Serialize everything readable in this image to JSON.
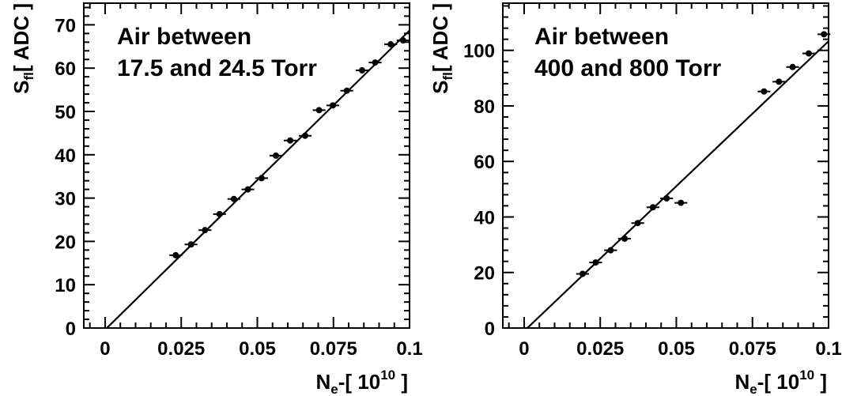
{
  "chart_data": [
    {
      "type": "scatter",
      "annotation": [
        "Air between",
        "17.5 and 24.5 Torr"
      ],
      "xlabel": "N",
      "xlabel_sub": "e",
      "xlabel_suffix": "-[ 10",
      "xlabel_exp": "10",
      "xlabel_close": " ]",
      "ylabel": "S",
      "ylabel_sub": "fl",
      "ylabel_suffix": "[ ADC ]",
      "xlim": [
        -0.007,
        0.1
      ],
      "ylim": [
        0,
        75
      ],
      "xticks": [
        0,
        0.025,
        0.05,
        0.075,
        0.1
      ],
      "xtick_labels": [
        "0",
        "0.025",
        "0.05",
        "0.075",
        "0.1"
      ],
      "yticks": [
        0,
        10,
        20,
        30,
        40,
        50,
        60,
        70
      ],
      "ytick_labels": [
        "0",
        "10",
        "20",
        "30",
        "40",
        "50",
        "60",
        "70"
      ],
      "fit_line": {
        "x": [
          0.0,
          0.1
        ],
        "y": [
          -0.4,
          68.7
        ]
      },
      "points": [
        {
          "x": 0.0232,
          "y": 16.8
        },
        {
          "x": 0.0282,
          "y": 19.3
        },
        {
          "x": 0.0328,
          "y": 22.6
        },
        {
          "x": 0.0376,
          "y": 26.3
        },
        {
          "x": 0.0423,
          "y": 29.8
        },
        {
          "x": 0.0469,
          "y": 32.0
        },
        {
          "x": 0.0514,
          "y": 34.6
        },
        {
          "x": 0.0561,
          "y": 39.8
        },
        {
          "x": 0.0608,
          "y": 43.3
        },
        {
          "x": 0.0657,
          "y": 44.4
        },
        {
          "x": 0.0703,
          "y": 50.3
        },
        {
          "x": 0.0748,
          "y": 51.4
        },
        {
          "x": 0.0794,
          "y": 54.8
        },
        {
          "x": 0.0844,
          "y": 59.5
        },
        {
          "x": 0.0887,
          "y": 61.3
        },
        {
          "x": 0.0938,
          "y": 65.5
        },
        {
          "x": 0.0979,
          "y": 66.4
        }
      ]
    },
    {
      "type": "scatter",
      "annotation": [
        "Air between",
        "400 and 800 Torr"
      ],
      "xlabel": "N",
      "xlabel_sub": "e",
      "xlabel_suffix": "-[ 10",
      "xlabel_exp": "10",
      "xlabel_close": " ]",
      "ylabel": "S",
      "ylabel_sub": "fl",
      "ylabel_suffix": "[ ADC ]",
      "xlim": [
        -0.007,
        0.1
      ],
      "ylim": [
        0,
        117
      ],
      "xticks": [
        0,
        0.025,
        0.05,
        0.075,
        0.1
      ],
      "xtick_labels": [
        "0",
        "0.025",
        "0.05",
        "0.075",
        "0.1"
      ],
      "yticks": [
        0,
        20,
        40,
        60,
        80,
        100
      ],
      "ytick_labels": [
        "0",
        "20",
        "40",
        "60",
        "80",
        "100"
      ],
      "fit_line": {
        "x": [
          0.0,
          0.1
        ],
        "y": [
          -1.1,
          103.3
        ]
      },
      "points": [
        {
          "x": 0.0192,
          "y": 19.5
        },
        {
          "x": 0.0235,
          "y": 23.6
        },
        {
          "x": 0.0284,
          "y": 28.0
        },
        {
          "x": 0.033,
          "y": 32.2
        },
        {
          "x": 0.0373,
          "y": 37.8
        },
        {
          "x": 0.0423,
          "y": 43.5
        },
        {
          "x": 0.0468,
          "y": 46.7
        },
        {
          "x": 0.0515,
          "y": 45.1
        },
        {
          "x": 0.0788,
          "y": 85.2
        },
        {
          "x": 0.0837,
          "y": 88.7
        },
        {
          "x": 0.0882,
          "y": 94.0
        },
        {
          "x": 0.0935,
          "y": 98.9
        },
        {
          "x": 0.0985,
          "y": 105.8
        }
      ]
    }
  ]
}
